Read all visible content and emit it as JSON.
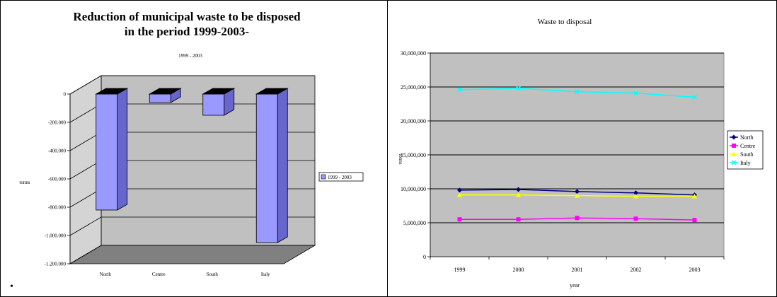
{
  "footnote": "•",
  "chart_data": [
    {
      "type": "bar",
      "title": "Reduction of municipal waste to be disposed in the period 1999-2003-",
      "title_line1": "Reduction of municipal waste to be disposed",
      "title_line2": "in the period 1999-2003-",
      "subtitle": "1999 - 2003",
      "xlabel": "",
      "ylabel": "tonns",
      "categories": [
        "North",
        "Centre",
        "South",
        "Italy"
      ],
      "series": [
        {
          "name": "1999 - 2003",
          "values": [
            -820000,
            -60000,
            -150000,
            -1050000
          ]
        }
      ],
      "ylim": [
        -1200000,
        0
      ],
      "yticks": [
        0,
        -200000,
        -400000,
        -600000,
        -800000,
        -1000000,
        -1200000
      ],
      "ytick_labels": [
        "0",
        "-200.000",
        "-400.000",
        "-600.000",
        "-800.000",
        "-1.000.000",
        "-1.200.000"
      ],
      "grid": true,
      "three_d": true,
      "legend_position": "right",
      "colors": {
        "bar": "#9999ff",
        "bar_top": "#000000",
        "bar_side": "#6666cc",
        "wall": "#c0c0c0",
        "floor": "#808080"
      }
    },
    {
      "type": "line",
      "title": "Waste to disposal",
      "xlabel": "year",
      "ylabel": "tonns",
      "x": [
        "1999",
        "2000",
        "2001",
        "2002",
        "2003"
      ],
      "series": [
        {
          "name": "North",
          "values": [
            9800000,
            9900000,
            9600000,
            9400000,
            9100000
          ],
          "color": "#000080",
          "marker": "diamond"
        },
        {
          "name": "Centre",
          "values": [
            5500000,
            5500000,
            5700000,
            5600000,
            5400000
          ],
          "color": "#ff00ff",
          "marker": "square"
        },
        {
          "name": "South",
          "values": [
            9100000,
            9100000,
            9000000,
            8900000,
            8900000
          ],
          "color": "#ffff00",
          "marker": "triangle"
        },
        {
          "name": "Italy",
          "values": [
            24600000,
            24800000,
            24300000,
            24100000,
            23500000
          ],
          "color": "#00ffff",
          "marker": "x"
        }
      ],
      "ylim": [
        0,
        30000000
      ],
      "yticks": [
        0,
        5000000,
        10000000,
        15000000,
        20000000,
        25000000,
        30000000
      ],
      "ytick_labels": [
        "0",
        "5,000,000",
        "10,000,000",
        "15,000,000",
        "20,000,000",
        "25,000,000",
        "30,000,000"
      ],
      "grid": true,
      "legend_position": "right",
      "colors": {
        "plot_bg": "#c0c0c0"
      }
    }
  ]
}
